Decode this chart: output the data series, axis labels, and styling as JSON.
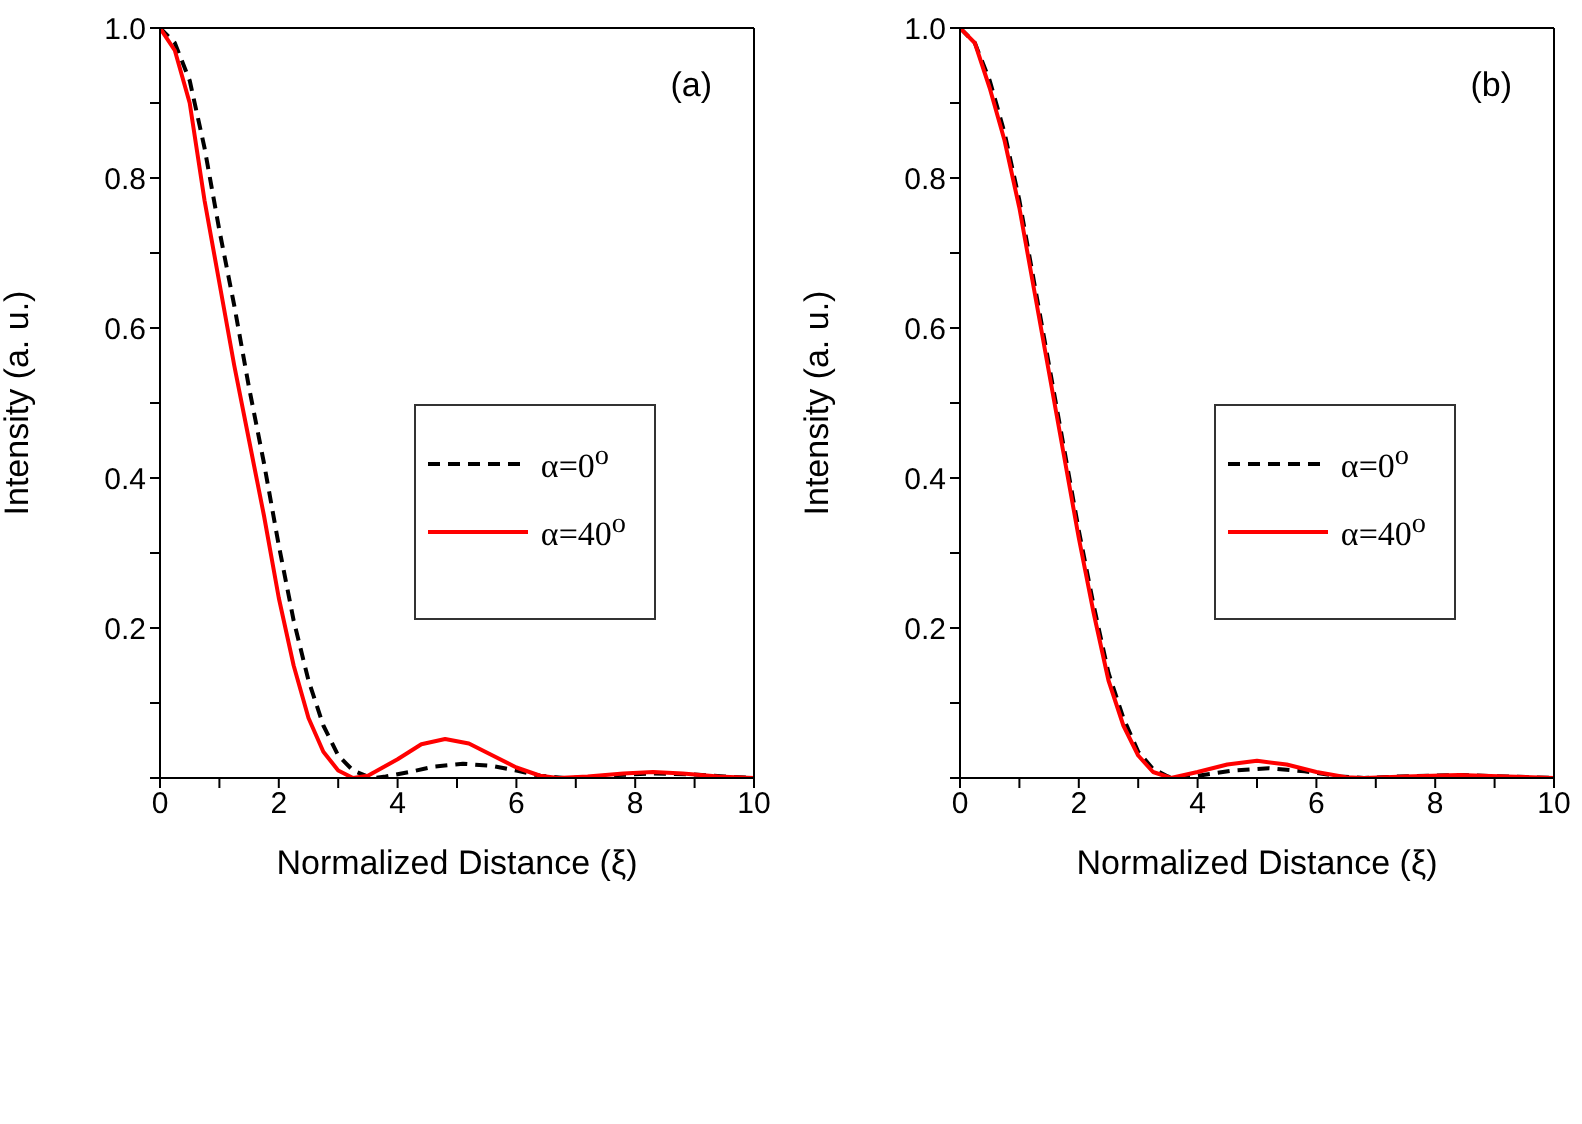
{
  "chart_data": [
    {
      "type": "line",
      "xlabel": "Normalized Distance (ξ)",
      "ylabel": "Intensity (a. u.)",
      "annotations": [
        "(a)"
      ],
      "xlim": [
        0,
        10
      ],
      "xticks": [
        0,
        {
          "value": 1,
          "label": null
        },
        2,
        {
          "value": 3,
          "label": null
        },
        4,
        {
          "value": 5,
          "label": null
        },
        6,
        {
          "value": 7,
          "label": null
        },
        8,
        {
          "value": 9,
          "label": null
        },
        10
      ],
      "ylim": [
        0,
        1
      ],
      "yticks": [
        {
          "value": 0,
          "label": null
        },
        {
          "value": 0.1,
          "label": null
        },
        0.2,
        {
          "value": 0.3,
          "label": null
        },
        0.4,
        {
          "value": 0.5,
          "label": null
        },
        0.6,
        {
          "value": 0.7,
          "label": null
        },
        0.8,
        {
          "value": 0.9,
          "label": null
        },
        {
          "value": 1,
          "label": "1.0"
        }
      ],
      "legend": "right",
      "marker": "none",
      "series": [
        {
          "name": "α=0$^{o}$",
          "color": "#000000",
          "line_style": "dashed",
          "x": [
            0,
            0.25,
            0.5,
            0.75,
            1,
            1.25,
            1.5,
            1.75,
            2,
            2.25,
            2.5,
            2.75,
            3,
            3.25,
            3.5,
            3.6,
            3.8,
            4.2,
            4.6,
            5.1,
            5.6,
            6,
            6.4,
            6.8,
            7.2,
            7.7,
            8.3,
            8.9,
            9.5,
            10
          ],
          "values": [
            1,
            0.98,
            0.93,
            0.84,
            0.73,
            0.63,
            0.52,
            0.42,
            0.31,
            0.21,
            0.13,
            0.07,
            0.03,
            0.01,
            0.002,
            0,
            0.002,
            0.008,
            0.015,
            0.019,
            0.016,
            0.01,
            0.003,
            0,
            0.001,
            0.004,
            0.006,
            0.005,
            0.002,
            0
          ]
        },
        {
          "name": "α=40$^{o}$",
          "color": "#ff0000",
          "line_style": "solid",
          "x": [
            0,
            0.25,
            0.5,
            0.75,
            1,
            1.25,
            1.5,
            1.75,
            2,
            2.25,
            2.5,
            2.75,
            3,
            3.25,
            3.5,
            4,
            4.4,
            4.8,
            5.2,
            5.6,
            6,
            6.4,
            6.7,
            7.2,
            7.8,
            8.3,
            8.8,
            9.4,
            10
          ],
          "values": [
            1,
            0.97,
            0.9,
            0.77,
            0.66,
            0.55,
            0.45,
            0.35,
            0.24,
            0.15,
            0.08,
            0.035,
            0.01,
            0,
            0.003,
            0.025,
            0.045,
            0.052,
            0.046,
            0.03,
            0.014,
            0.003,
            0,
            0.002,
            0.006,
            0.008,
            0.006,
            0.002,
            0
          ]
        }
      ]
    },
    {
      "type": "line",
      "xlabel": "Normalized Distance (ξ)",
      "ylabel": "Intensity (a. u.)",
      "annotations": [
        "(b)"
      ],
      "xlim": [
        0,
        10
      ],
      "xticks": [
        0,
        {
          "value": 1,
          "label": null
        },
        2,
        {
          "value": 3,
          "label": null
        },
        4,
        {
          "value": 5,
          "label": null
        },
        6,
        {
          "value": 7,
          "label": null
        },
        8,
        {
          "value": 9,
          "label": null
        },
        10
      ],
      "ylim": [
        0,
        1
      ],
      "yticks": [
        {
          "value": 0,
          "label": null
        },
        {
          "value": 0.1,
          "label": null
        },
        0.2,
        {
          "value": 0.3,
          "label": null
        },
        0.4,
        {
          "value": 0.5,
          "label": null
        },
        0.6,
        {
          "value": 0.7,
          "label": null
        },
        0.8,
        {
          "value": 0.9,
          "label": null
        },
        {
          "value": 1,
          "label": "1.0"
        }
      ],
      "legend": "right",
      "marker": "none",
      "series": [
        {
          "name": "α=0$^{o}$",
          "color": "#000000",
          "line_style": "dashed",
          "x": [
            0,
            0.25,
            0.5,
            0.75,
            1,
            1.25,
            1.5,
            1.75,
            2,
            2.25,
            2.5,
            2.75,
            3,
            3.25,
            3.5,
            3.6,
            4,
            4.6,
            5.2,
            5.8,
            6.4,
            6.8,
            7.4,
            8.4,
            9.2,
            10
          ],
          "values": [
            1,
            0.98,
            0.93,
            0.86,
            0.77,
            0.66,
            0.55,
            0.44,
            0.33,
            0.23,
            0.14,
            0.08,
            0.035,
            0.012,
            0.002,
            0,
            0.003,
            0.01,
            0.013,
            0.009,
            0.002,
            0,
            0.002,
            0.004,
            0.002,
            0
          ]
        },
        {
          "name": "α=40$^{o}$",
          "color": "#ff0000",
          "line_style": "solid",
          "x": [
            0,
            0.25,
            0.5,
            0.75,
            1,
            1.25,
            1.5,
            1.75,
            2,
            2.25,
            2.5,
            2.75,
            3,
            3.25,
            3.55,
            4,
            4.5,
            5,
            5.5,
            6,
            6.5,
            6.8,
            7.5,
            8.4,
            9.2,
            10
          ],
          "values": [
            1,
            0.98,
            0.92,
            0.85,
            0.76,
            0.65,
            0.54,
            0.43,
            0.32,
            0.22,
            0.13,
            0.07,
            0.03,
            0.008,
            0,
            0.008,
            0.018,
            0.023,
            0.018,
            0.008,
            0.001,
            0,
            0.002,
            0.004,
            0.002,
            0
          ]
        }
      ]
    }
  ]
}
